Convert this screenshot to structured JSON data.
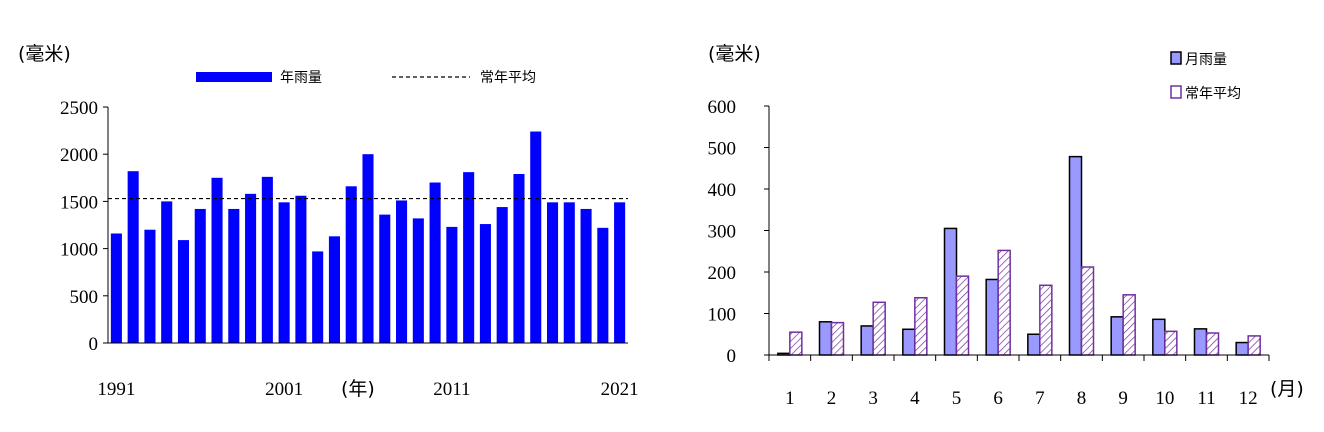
{
  "chart_data": [
    {
      "type": "bar",
      "ylabel": "(毫米)",
      "xlabel": "(年)",
      "ylim": [
        0,
        2500
      ],
      "y_ticks": [
        "0",
        "500",
        "1000",
        "1500",
        "2000",
        "2500"
      ],
      "x_tick_labels": [
        "1991",
        "2001",
        "2011",
        "2021"
      ],
      "legend_position": "top",
      "series": [
        {
          "name": "年雨量",
          "color": "#0000ff",
          "x": [
            1991,
            1992,
            1993,
            1994,
            1995,
            1996,
            1997,
            1998,
            1999,
            2000,
            2001,
            2002,
            2003,
            2004,
            2005,
            2006,
            2007,
            2008,
            2009,
            2010,
            2011,
            2012,
            2013,
            2014,
            2015,
            2016,
            2017,
            2018,
            2019,
            2020,
            2021
          ],
          "values": [
            1160,
            1820,
            1200,
            1500,
            1090,
            1420,
            1750,
            1420,
            1580,
            1760,
            1490,
            1560,
            970,
            1130,
            1660,
            2000,
            1360,
            1510,
            1320,
            1700,
            1230,
            1810,
            1260,
            1440,
            1790,
            2240,
            1490,
            1490,
            1420,
            1220,
            1490
          ]
        }
      ],
      "reference_line": {
        "name": "常年平均",
        "value": 1530,
        "style": "dashed"
      }
    },
    {
      "type": "bar",
      "ylabel": "(毫米)",
      "xlabel": "(月)",
      "ylim": [
        0,
        600
      ],
      "y_ticks": [
        "0",
        "100",
        "200",
        "300",
        "400",
        "500",
        "600"
      ],
      "categories": [
        "1",
        "2",
        "3",
        "4",
        "5",
        "6",
        "7",
        "8",
        "9",
        "10",
        "11",
        "12"
      ],
      "legend_position": "top-right",
      "series": [
        {
          "name": "月雨量",
          "color": "#9999ff",
          "edge": "#000000",
          "values": [
            4,
            80,
            70,
            62,
            305,
            182,
            50,
            478,
            92,
            86,
            63,
            30
          ]
        },
        {
          "name": "常年平均",
          "color": "#ffffff",
          "edge": "#7030a0",
          "hatch": "#7030a0",
          "values": [
            55,
            78,
            127,
            138,
            190,
            252,
            168,
            212,
            145,
            57,
            53,
            46
          ]
        }
      ]
    }
  ]
}
